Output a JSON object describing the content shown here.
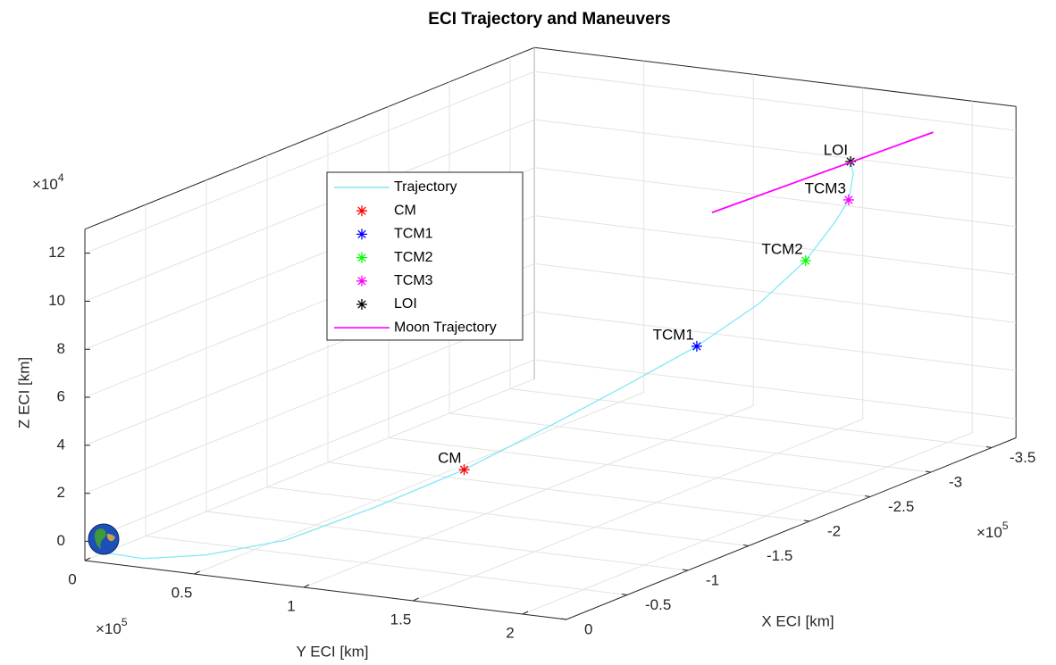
{
  "chart_data": {
    "type": "line3d",
    "title": "ECI Trajectory  and Maneuvers",
    "xlabel": "X ECI [km]",
    "ylabel": "Y ECI [km]",
    "zlabel": "Z ECI [km]",
    "x_multiplier": {
      "base": "×10",
      "exponent": "5"
    },
    "y_multiplier": {
      "base": "×10",
      "exponent": "5"
    },
    "z_multiplier": {
      "base": "×10",
      "exponent": "4"
    },
    "xlim": [
      -3.7,
      0
    ],
    "ylim": [
      0,
      2.2
    ],
    "zlim": [
      -0.8,
      13
    ],
    "xticks": [
      0,
      -0.5,
      -1,
      -1.5,
      -2,
      -2.5,
      -3,
      -3.5
    ],
    "yticks": [
      0,
      0.5,
      1,
      1.5,
      2
    ],
    "zticks": [
      0,
      2,
      4,
      6,
      8,
      10,
      12
    ],
    "grid": true,
    "legend": true,
    "series": [
      {
        "name": "Trajectory",
        "color": "#7fe9f5",
        "x": [
          -0.056,
          -0.03,
          -0.09,
          -0.21,
          -0.59,
          -1.05,
          -1.61,
          -2.07,
          -2.55,
          -2.99,
          -3.32,
          -3.53,
          -3.62,
          -3.64,
          -3.6
        ],
        "y": [
          0.03,
          0.25,
          0.5,
          0.8,
          1.0,
          1.15,
          1.25,
          1.32,
          1.38,
          1.42,
          1.45,
          1.47,
          1.48,
          1.49,
          1.5
        ],
        "z": [
          -0.51,
          -0.5,
          -0.2,
          0.51,
          1.34,
          2.12,
          3.0,
          3.72,
          4.45,
          5.37,
          6.52,
          7.75,
          8.47,
          9.52,
          10.13
        ]
      },
      {
        "name": "CM",
        "color": "#ff0000",
        "marker": "*",
        "x": [
          -1.05
        ],
        "y": [
          1.15
        ],
        "z": [
          2.12
        ]
      },
      {
        "name": "TCM1",
        "color": "#0000ff",
        "marker": "*",
        "x": [
          -2.55
        ],
        "y": [
          1.38
        ],
        "z": [
          4.45
        ]
      },
      {
        "name": "TCM2",
        "color": "#00ff00",
        "marker": "*",
        "x": [
          -3.32
        ],
        "y": [
          1.45
        ],
        "z": [
          6.52
        ]
      },
      {
        "name": "TCM3",
        "color": "#ff00ff",
        "marker": "*",
        "x": [
          -3.62
        ],
        "y": [
          1.48
        ],
        "z": [
          8.47
        ]
      },
      {
        "name": "LOI",
        "color": "#000000",
        "marker": "*",
        "x": [
          -3.6
        ],
        "y": [
          1.5
        ],
        "z": [
          10.13
        ]
      },
      {
        "name": "Moon Trajectory",
        "color": "#ff00ff",
        "x": [
          -3.36,
          -3.38
        ],
        "y": [
          1.0,
          2.0
        ],
        "z": [
          7.94,
          12.36
        ]
      }
    ]
  }
}
